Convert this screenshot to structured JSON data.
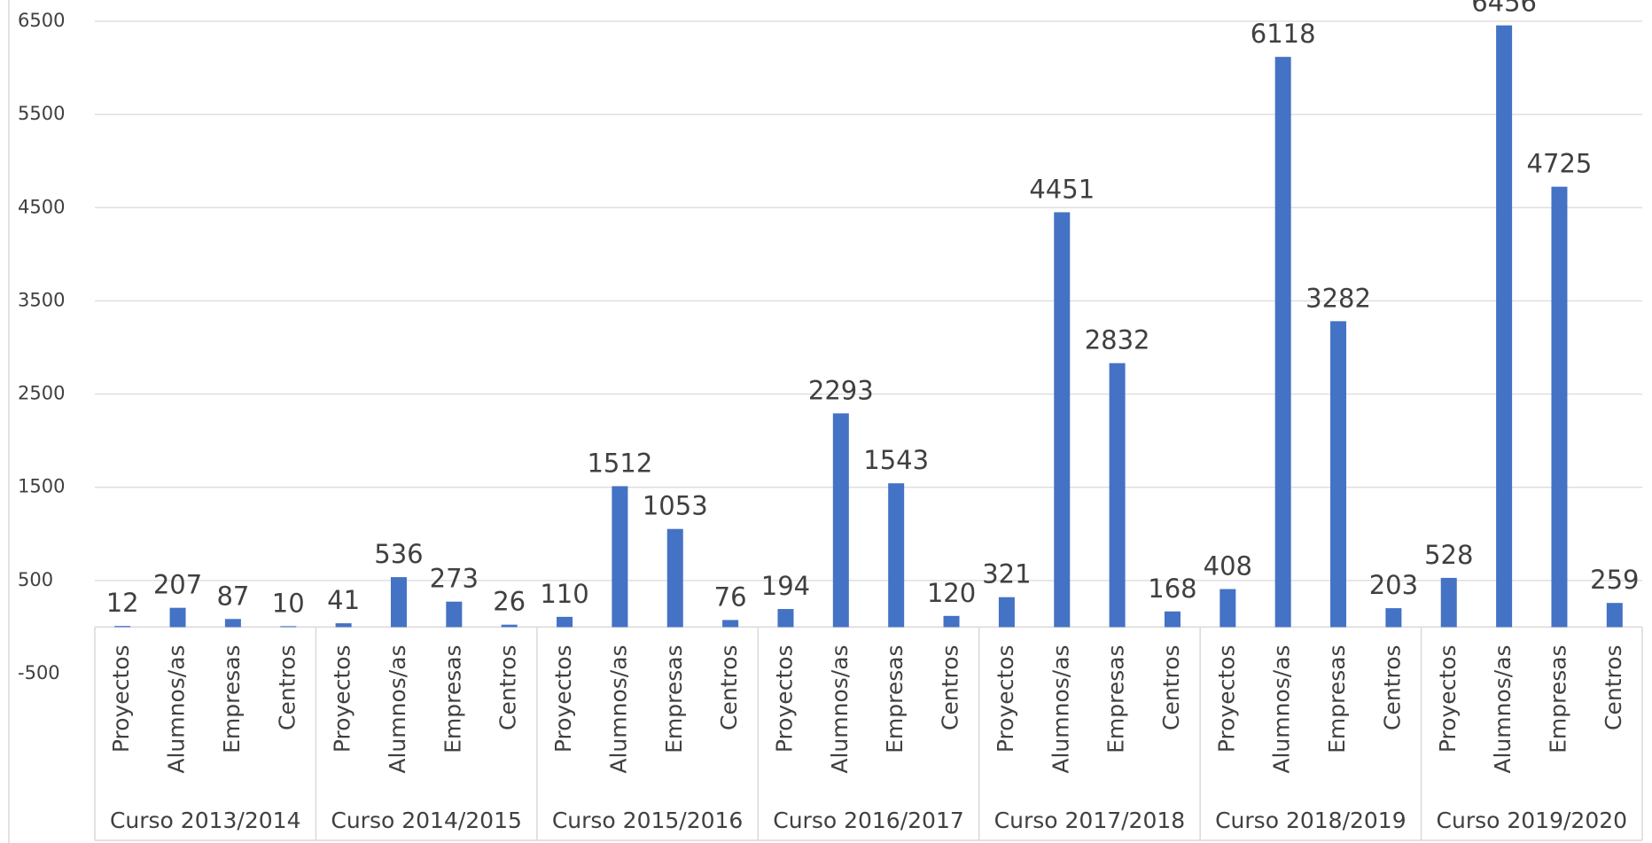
{
  "chart_data": {
    "type": "bar",
    "color": "#4472c4",
    "categories": [
      "Proyectos",
      "Alumnos/as",
      "Empresas",
      "Centros"
    ],
    "groups": [
      {
        "name": "Curso 2013/2014",
        "values": [
          12,
          207,
          87,
          10
        ]
      },
      {
        "name": "Curso 2014/2015",
        "values": [
          41,
          536,
          273,
          26
        ]
      },
      {
        "name": "Curso 2015/2016",
        "values": [
          110,
          1512,
          1053,
          76
        ]
      },
      {
        "name": "Curso 2016/2017",
        "values": [
          194,
          2293,
          1543,
          120
        ]
      },
      {
        "name": "Curso 2017/2018",
        "values": [
          321,
          4451,
          2832,
          168
        ]
      },
      {
        "name": "Curso 2018/2019",
        "values": [
          408,
          6118,
          3282,
          203
        ]
      },
      {
        "name": "Curso 2019/2020",
        "values": [
          528,
          6456,
          4725,
          259
        ]
      }
    ],
    "ylim": [
      -500,
      6500
    ],
    "yticks": [
      -500,
      500,
      1500,
      2500,
      3500,
      4500,
      5500,
      6500
    ],
    "grid": true
  }
}
